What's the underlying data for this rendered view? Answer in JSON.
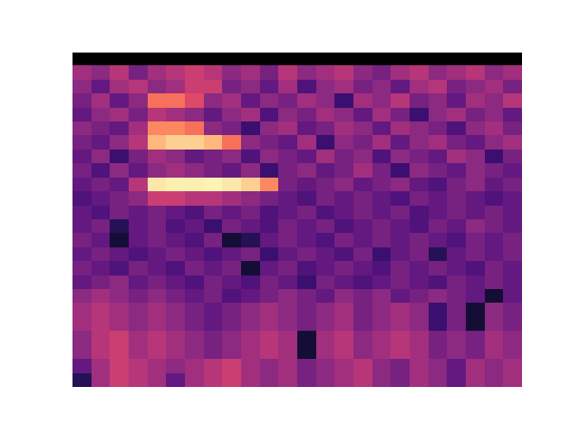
{
  "chart_data": {
    "type": "heatmap",
    "color": "magma",
    "tick_labels": false,
    "zlim": [
      0,
      1
    ],
    "cells": [
      [
        0,
        0,
        0,
        0,
        0,
        0,
        0,
        0,
        0,
        0,
        0,
        0,
        0,
        0,
        0,
        0,
        0,
        0,
        0,
        0,
        0,
        0,
        0,
        0
      ],
      [
        0.45,
        0.4,
        0.5,
        0.35,
        0.45,
        0.5,
        0.55,
        0.5,
        0.4,
        0.45,
        0.35,
        0.5,
        0.4,
        0.45,
        0.5,
        0.4,
        0.35,
        0.45,
        0.5,
        0.4,
        0.45,
        0.5,
        0.4,
        0.45
      ],
      [
        0.4,
        0.3,
        0.45,
        0.5,
        0.4,
        0.45,
        0.55,
        0.55,
        0.35,
        0.4,
        0.3,
        0.45,
        0.25,
        0.4,
        0.45,
        0.35,
        0.4,
        0.3,
        0.45,
        0.5,
        0.35,
        0.4,
        0.45,
        0.35
      ],
      [
        0.35,
        0.45,
        0.3,
        0.4,
        0.7,
        0.7,
        0.6,
        0.4,
        0.45,
        0.3,
        0.4,
        0.35,
        0.45,
        0.4,
        0.2,
        0.45,
        0.4,
        0.5,
        0.35,
        0.4,
        0.3,
        0.45,
        0.4,
        0.5
      ],
      [
        0.3,
        0.4,
        0.45,
        0.35,
        0.5,
        0.45,
        0.4,
        0.3,
        0.4,
        0.45,
        0.25,
        0.4,
        0.35,
        0.45,
        0.4,
        0.3,
        0.45,
        0.35,
        0.2,
        0.4,
        0.45,
        0.35,
        0.4,
        0.3
      ],
      [
        0.4,
        0.35,
        0.3,
        0.45,
        0.75,
        0.75,
        0.7,
        0.4,
        0.35,
        0.2,
        0.4,
        0.45,
        0.3,
        0.35,
        0.45,
        0.4,
        0.3,
        0.45,
        0.4,
        0.35,
        0.25,
        0.4,
        0.45,
        0.35
      ],
      [
        0.35,
        0.3,
        0.4,
        0.5,
        0.85,
        0.9,
        0.9,
        0.85,
        0.7,
        0.4,
        0.35,
        0.3,
        0.45,
        0.2,
        0.4,
        0.35,
        0.45,
        0.3,
        0.4,
        0.45,
        0.35,
        0.3,
        0.4,
        0.45
      ],
      [
        0.3,
        0.4,
        0.2,
        0.35,
        0.45,
        0.4,
        0.3,
        0.35,
        0.4,
        0.25,
        0.4,
        0.35,
        0.3,
        0.45,
        0.35,
        0.4,
        0.25,
        0.4,
        0.35,
        0.3,
        0.45,
        0.4,
        0.2,
        0.35
      ],
      [
        0.35,
        0.25,
        0.4,
        0.3,
        0.4,
        0.45,
        0.4,
        0.35,
        0.3,
        0.4,
        0.2,
        0.35,
        0.4,
        0.3,
        0.35,
        0.45,
        0.35,
        0.2,
        0.4,
        0.35,
        0.3,
        0.4,
        0.35,
        0.3
      ],
      [
        0.3,
        0.35,
        0.3,
        0.5,
        0.95,
        0.97,
        0.97,
        0.98,
        0.95,
        0.9,
        0.75,
        0.35,
        0.3,
        0.35,
        0.4,
        0.3,
        0.35,
        0.4,
        0.3,
        0.25,
        0.35,
        0.4,
        0.3,
        0.35
      ],
      [
        0.25,
        0.3,
        0.35,
        0.4,
        0.55,
        0.55,
        0.5,
        0.5,
        0.45,
        0.4,
        0.35,
        0.3,
        0.25,
        0.35,
        0.3,
        0.35,
        0.3,
        0.25,
        0.35,
        0.3,
        0.35,
        0.3,
        0.25,
        0.3
      ],
      [
        0.3,
        0.25,
        0.35,
        0.3,
        0.35,
        0.3,
        0.25,
        0.35,
        0.3,
        0.35,
        0.25,
        0.3,
        0.35,
        0.25,
        0.3,
        0.35,
        0.3,
        0.35,
        0.25,
        0.3,
        0.35,
        0.3,
        0.35,
        0.3
      ],
      [
        0.3,
        0.35,
        0.15,
        0.3,
        0.35,
        0.25,
        0.3,
        0.2,
        0.35,
        0.3,
        0.25,
        0.35,
        0.3,
        0.35,
        0.25,
        0.3,
        0.35,
        0.3,
        0.25,
        0.35,
        0.3,
        0.4,
        0.35,
        0.3
      ],
      [
        0.35,
        0.3,
        0.1,
        0.3,
        0.35,
        0.3,
        0.25,
        0.35,
        0.1,
        0.15,
        0.3,
        0.35,
        0.3,
        0.25,
        0.35,
        0.3,
        0.35,
        0.3,
        0.35,
        0.3,
        0.25,
        0.35,
        0.3,
        0.35
      ],
      [
        0.3,
        0.35,
        0.3,
        0.25,
        0.3,
        0.35,
        0.3,
        0.25,
        0.3,
        0.35,
        0.2,
        0.3,
        0.35,
        0.3,
        0.25,
        0.35,
        0.2,
        0.3,
        0.35,
        0.15,
        0.3,
        0.35,
        0.3,
        0.35
      ],
      [
        0.35,
        0.3,
        0.25,
        0.35,
        0.3,
        0.25,
        0.35,
        0.3,
        0.35,
        0.1,
        0.3,
        0.35,
        0.25,
        0.3,
        0.35,
        0.3,
        0.25,
        0.35,
        0.3,
        0.35,
        0.3,
        0.25,
        0.35,
        0.3
      ],
      [
        0.3,
        0.35,
        0.4,
        0.3,
        0.35,
        0.3,
        0.25,
        0.35,
        0.3,
        0.25,
        0.35,
        0.3,
        0.2,
        0.35,
        0.3,
        0.25,
        0.3,
        0.35,
        0.3,
        0.25,
        0.35,
        0.3,
        0.35,
        0.3
      ],
      [
        0.4,
        0.45,
        0.4,
        0.35,
        0.4,
        0.35,
        0.3,
        0.35,
        0.25,
        0.3,
        0.35,
        0.4,
        0.35,
        0.3,
        0.4,
        0.35,
        0.4,
        0.3,
        0.35,
        0.4,
        0.35,
        0.3,
        0.1,
        0.3
      ],
      [
        0.45,
        0.5,
        0.45,
        0.4,
        0.45,
        0.4,
        0.35,
        0.3,
        0.35,
        0.4,
        0.45,
        0.4,
        0.35,
        0.4,
        0.45,
        0.35,
        0.4,
        0.45,
        0.4,
        0.2,
        0.35,
        0.1,
        0.4,
        0.35
      ],
      [
        0.45,
        0.5,
        0.45,
        0.4,
        0.45,
        0.4,
        0.35,
        0.3,
        0.35,
        0.4,
        0.45,
        0.4,
        0.35,
        0.4,
        0.45,
        0.35,
        0.4,
        0.45,
        0.4,
        0.2,
        0.35,
        0.1,
        0.4,
        0.35
      ],
      [
        0.4,
        0.5,
        0.55,
        0.45,
        0.5,
        0.45,
        0.4,
        0.35,
        0.4,
        0.45,
        0.5,
        0.45,
        0.1,
        0.45,
        0.5,
        0.4,
        0.45,
        0.5,
        0.45,
        0.35,
        0.4,
        0.35,
        0.45,
        0.4
      ],
      [
        0.4,
        0.5,
        0.55,
        0.45,
        0.5,
        0.45,
        0.4,
        0.35,
        0.4,
        0.45,
        0.5,
        0.45,
        0.1,
        0.45,
        0.5,
        0.4,
        0.45,
        0.5,
        0.45,
        0.35,
        0.4,
        0.35,
        0.45,
        0.4
      ],
      [
        0.3,
        0.45,
        0.55,
        0.5,
        0.45,
        0.4,
        0.45,
        0.5,
        0.55,
        0.45,
        0.4,
        0.45,
        0.35,
        0.4,
        0.45,
        0.5,
        0.4,
        0.35,
        0.45,
        0.4,
        0.3,
        0.45,
        0.4,
        0.45
      ],
      [
        0.15,
        0.45,
        0.55,
        0.5,
        0.45,
        0.3,
        0.45,
        0.5,
        0.55,
        0.45,
        0.4,
        0.45,
        0.35,
        0.4,
        0.45,
        0.5,
        0.4,
        0.35,
        0.45,
        0.4,
        0.3,
        0.45,
        0.4,
        0.45
      ]
    ]
  }
}
